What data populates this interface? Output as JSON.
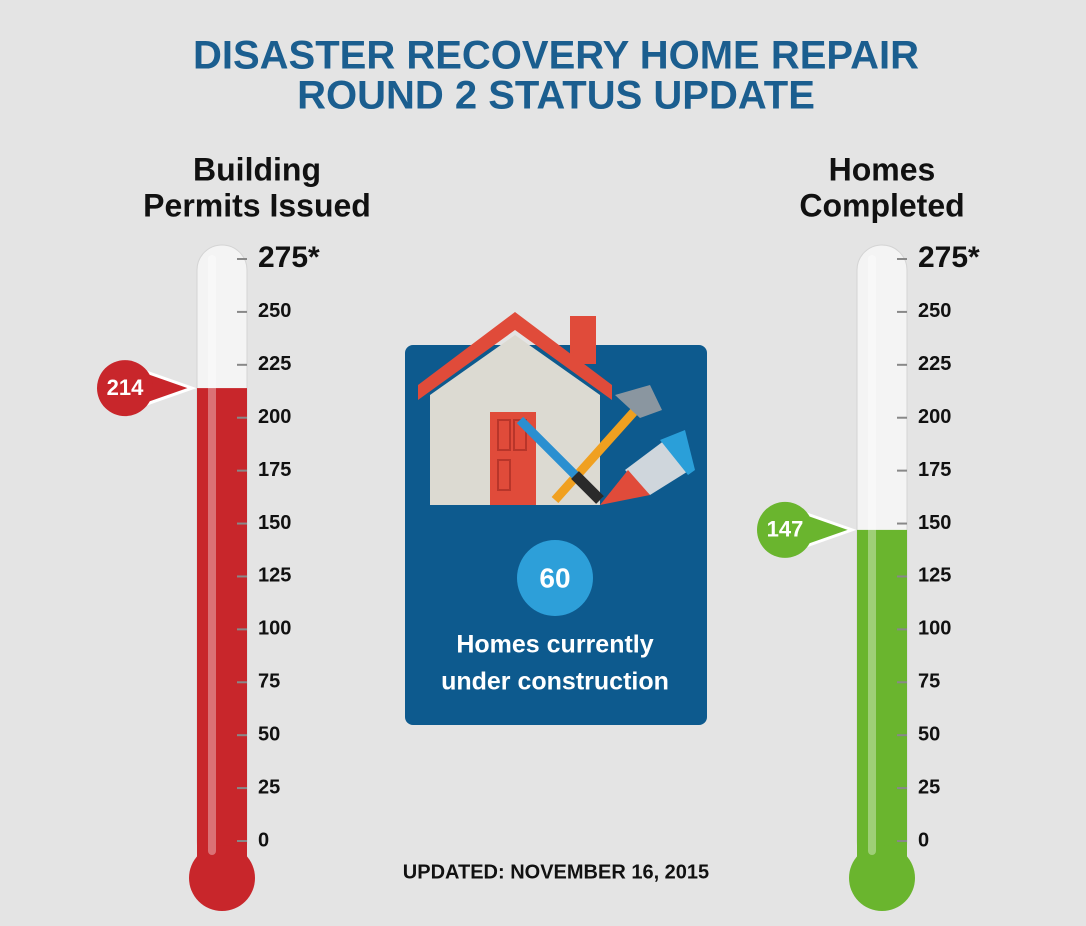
{
  "title": [
    "DISASTER RECOVERY HOME REPAIR",
    "ROUND 2 STATUS UPDATE"
  ],
  "chart_data": [
    {
      "type": "thermometer",
      "title": [
        "Building",
        "Permits Issued"
      ],
      "value": 214,
      "color": "#c8262b",
      "ylim": [
        0,
        275
      ],
      "yticks": [
        0,
        25,
        50,
        75,
        100,
        125,
        150,
        175,
        200,
        225,
        250,
        {
          "value": 275,
          "label": "275*"
        }
      ]
    },
    {
      "type": "thermometer",
      "title": [
        "Homes",
        "Completed"
      ],
      "value": 147,
      "color": "#6ab52e",
      "ylim": [
        0,
        275
      ],
      "yticks": [
        0,
        25,
        50,
        75,
        100,
        125,
        150,
        175,
        200,
        225,
        250,
        {
          "value": 275,
          "label": "275*"
        }
      ]
    }
  ],
  "callout": {
    "value": 60,
    "label": [
      "Homes currently",
      "under construction"
    ]
  },
  "updated": "UPDATED: NOVEMBER 16, 2015"
}
